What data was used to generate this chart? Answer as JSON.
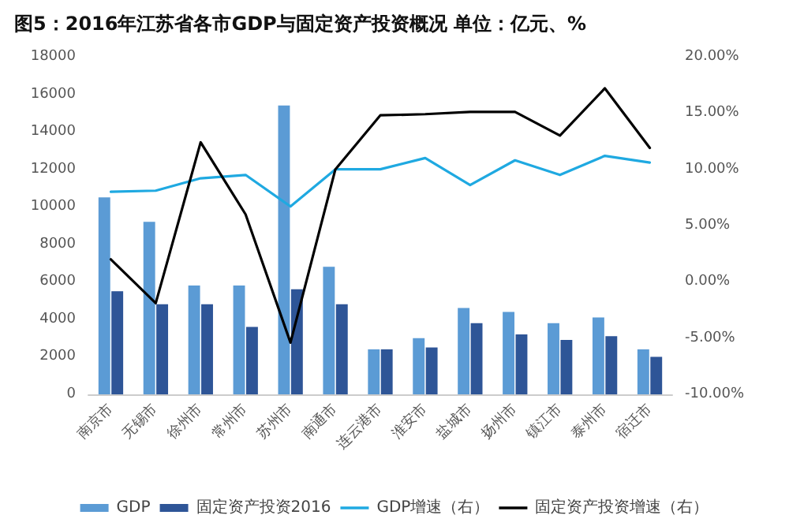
{
  "chart_data": {
    "type": "bar",
    "title": "图5：2016年江苏省各市GDP与固定资产投资概况 单位：亿元、%",
    "categories": [
      "南京市",
      "无锡市",
      "徐州市",
      "常州市",
      "苏州市",
      "南通市",
      "连云港市",
      "淮安市",
      "盐城市",
      "扬州市",
      "镇江市",
      "泰州市",
      "宿迁市"
    ],
    "series": [
      {
        "name": "GDP",
        "type": "bar",
        "color": "#5b9bd5",
        "values": [
          10500,
          9200,
          5800,
          5800,
          15400,
          6800,
          2400,
          3000,
          4600,
          4400,
          3800,
          4100,
          2400
        ]
      },
      {
        "name": "固定资产投资2016",
        "type": "bar",
        "color": "#2e5597",
        "values": [
          5500,
          4800,
          4800,
          3600,
          5600,
          4800,
          2400,
          2500,
          3800,
          3200,
          2900,
          3100,
          2000
        ]
      },
      {
        "name": "GDP增速（右）",
        "type": "line",
        "axis": "y2",
        "color": "#1fa9e1",
        "values": [
          8.0,
          8.1,
          9.2,
          9.5,
          6.7,
          10.0,
          10.0,
          11.0,
          8.6,
          10.8,
          9.5,
          11.2,
          10.6
        ]
      },
      {
        "name": "固定资产投资增速（右）",
        "type": "line",
        "axis": "y2",
        "color": "#000000",
        "values": [
          2.0,
          -1.9,
          12.4,
          6.0,
          -5.4,
          10.0,
          14.8,
          14.9,
          15.1,
          15.1,
          13.0,
          17.2,
          11.9
        ]
      }
    ],
    "ylim": [
      0,
      18000
    ],
    "yticks": [
      0,
      2000,
      4000,
      6000,
      8000,
      10000,
      12000,
      14000,
      16000,
      18000
    ],
    "y2lim": [
      -10,
      20
    ],
    "y2ticks": [
      {
        "value": -10,
        "label": "-10.00%"
      },
      {
        "value": -5,
        "label": "-5.00%"
      },
      {
        "value": 0,
        "label": "0.00%"
      },
      {
        "value": 5,
        "label": "5.00%"
      },
      {
        "value": 10,
        "label": "10.00%"
      },
      {
        "value": 15,
        "label": "15.00%"
      },
      {
        "value": 20,
        "label": "20.00%"
      }
    ],
    "grid": false,
    "legend": "bottom",
    "marker": "none",
    "line_style": "solid"
  }
}
